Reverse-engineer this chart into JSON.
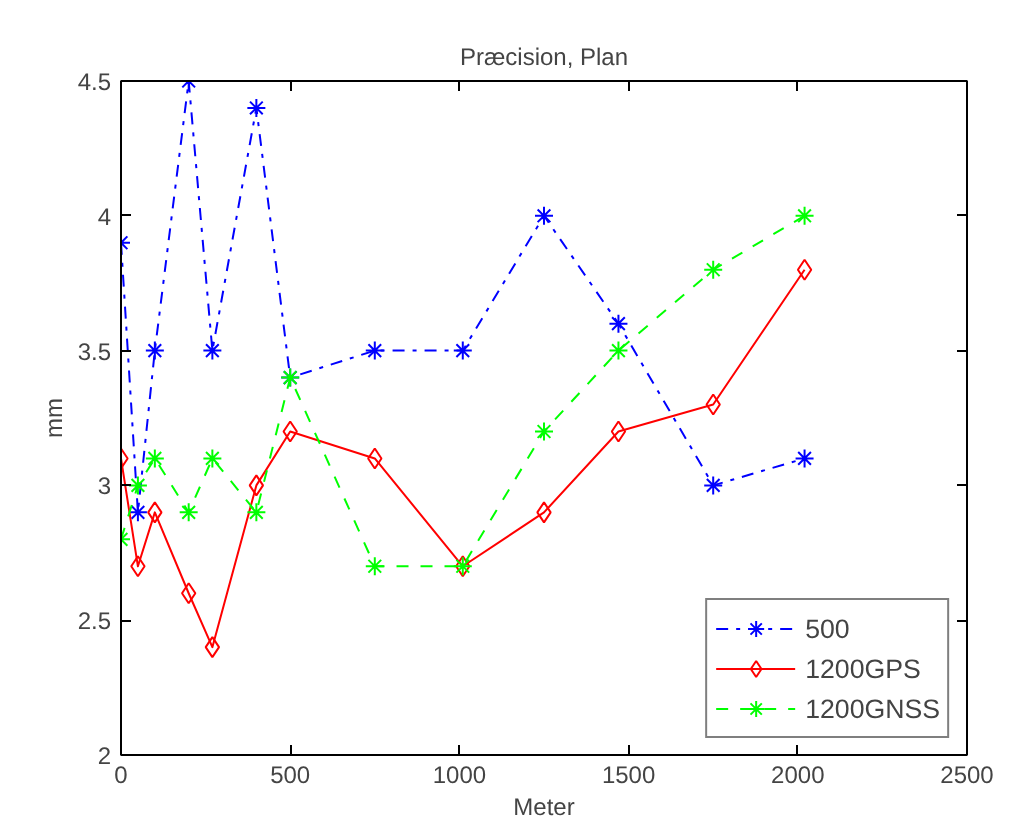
{
  "chart_data": {
    "type": "line",
    "title": "Præcision, Plan",
    "xlabel": "Meter",
    "ylabel": "mm",
    "x": [
      0,
      50,
      100,
      200,
      270,
      400,
      500,
      750,
      1010,
      1250,
      1470,
      1750,
      2020
    ],
    "series": [
      {
        "name": "500",
        "color": "#0000ff",
        "marker": "cross",
        "line_style": "dashdot",
        "values": [
          3.9,
          2.9,
          3.5,
          4.5,
          3.5,
          4.4,
          3.4,
          3.5,
          3.5,
          4.0,
          3.6,
          3.0,
          3.1
        ]
      },
      {
        "name": "1200GPS",
        "color": "#ff0000",
        "marker": "diamond",
        "line_style": "solid",
        "values": [
          3.1,
          2.7,
          2.9,
          2.6,
          2.4,
          3.0,
          3.2,
          3.1,
          2.7,
          2.9,
          3.2,
          3.3,
          3.8
        ]
      },
      {
        "name": "1200GNSS",
        "color": "#00ff00",
        "marker": "cross",
        "line_style": "dashed",
        "values": [
          2.8,
          3.0,
          3.1,
          2.9,
          3.1,
          2.9,
          3.4,
          2.7,
          2.7,
          3.2,
          3.5,
          3.8,
          4.0
        ]
      }
    ],
    "xlim": [
      0,
      2500
    ],
    "ylim": [
      2,
      4.5
    ],
    "xticks": [
      0,
      500,
      1000,
      1500,
      2000,
      2500
    ],
    "yticks": [
      2,
      2.5,
      3,
      3.5,
      4,
      4.5
    ],
    "grid": false,
    "legend": "bottom right"
  }
}
